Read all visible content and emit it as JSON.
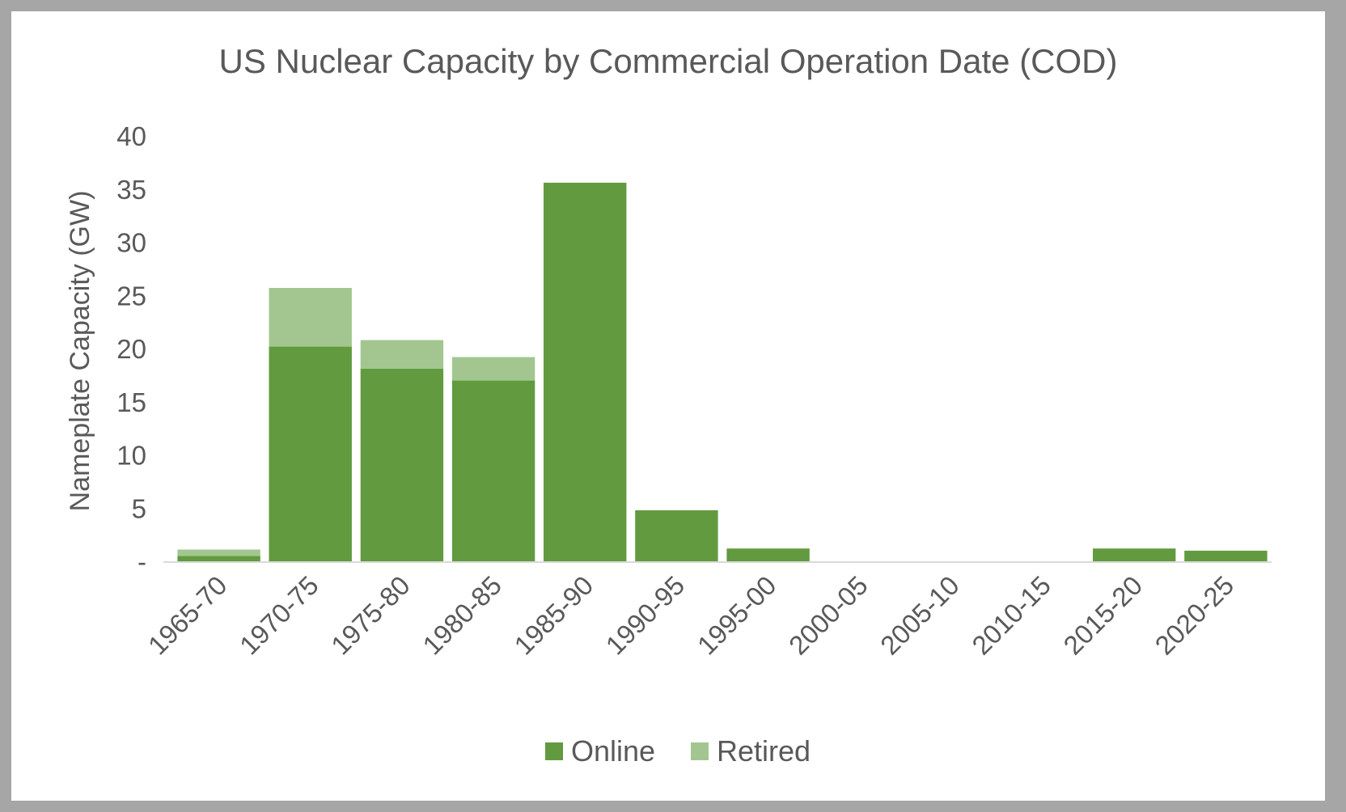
{
  "chart_data": {
    "type": "bar",
    "stacked": true,
    "title": "US Nuclear Capacity by Commercial Operation Date (COD)",
    "xlabel": "",
    "ylabel": "Nameplate Capacity (GW)",
    "ylim": [
      0,
      40
    ],
    "yticks": [
      "-",
      "5",
      "10",
      "15",
      "20",
      "25",
      "30",
      "35",
      "40"
    ],
    "grid": false,
    "legend_position": "bottom",
    "categories": [
      "1965-70",
      "1970-75",
      "1975-80",
      "1980-85",
      "1985-90",
      "1990-95",
      "1995-00",
      "2000-05",
      "2005-10",
      "2010-15",
      "2015-20",
      "2020-25"
    ],
    "series": [
      {
        "name": "Online",
        "color": "#629a3f",
        "values": [
          0.5,
          20.2,
          18.1,
          17.0,
          35.6,
          4.8,
          1.2,
          0,
          0,
          0,
          1.2,
          1.0
        ]
      },
      {
        "name": "Retired",
        "color": "#a3c690",
        "values": [
          0.6,
          5.5,
          2.7,
          2.2,
          0,
          0,
          0,
          0,
          0,
          0,
          0,
          0
        ]
      }
    ]
  }
}
